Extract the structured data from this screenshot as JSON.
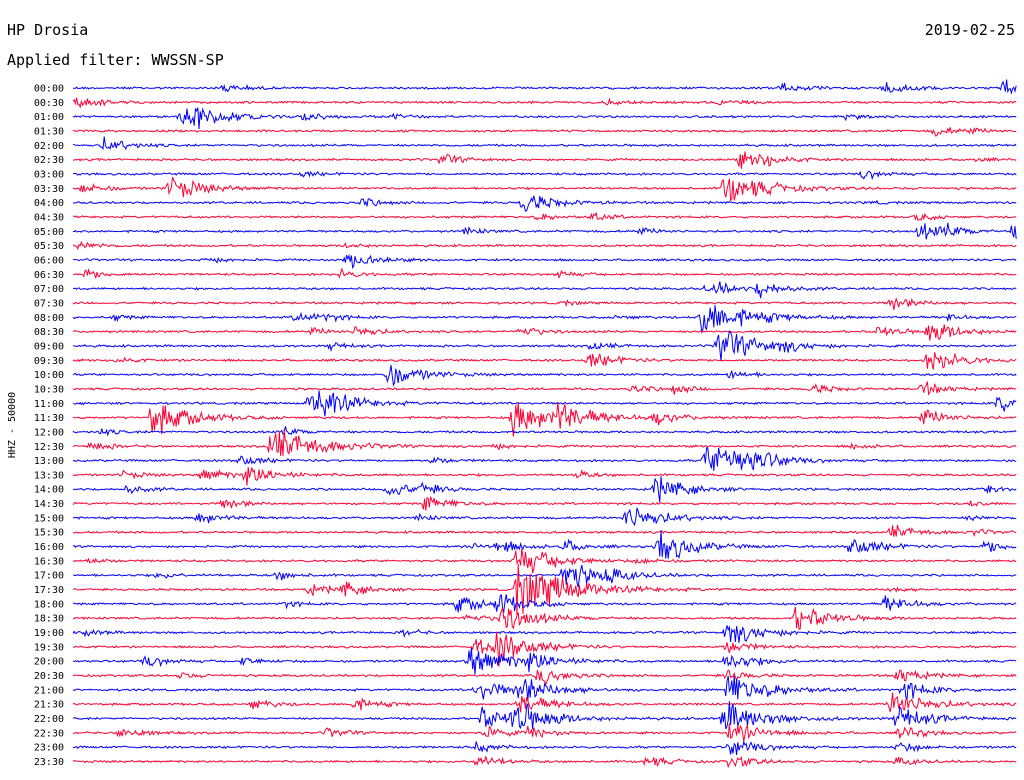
{
  "header": {
    "station": "HP Drosia",
    "date": "2019-02-25",
    "filter_label": "Applied filter: WWSSN-SP"
  },
  "chart_data": {
    "type": "helicorder",
    "title": "HP Drosia",
    "date": "2019-02-25",
    "filter": "WWSSN-SP",
    "ylabel": "HHZ - 50000",
    "row_interval_minutes": 30,
    "row_labels": [
      "00:00",
      "00:30",
      "01:00",
      "01:30",
      "02:00",
      "02:30",
      "03:00",
      "03:30",
      "04:00",
      "04:30",
      "05:00",
      "05:30",
      "06:00",
      "06:30",
      "07:00",
      "07:30",
      "08:00",
      "08:30",
      "09:00",
      "09:30",
      "10:00",
      "10:30",
      "11:00",
      "11:30",
      "12:00",
      "12:30",
      "13:00",
      "13:30",
      "14:00",
      "14:30",
      "15:00",
      "15:30",
      "16:00",
      "16:30",
      "17:00",
      "17:30",
      "18:00",
      "18:30",
      "19:00",
      "19:30",
      "20:00",
      "20:30",
      "21:00",
      "21:30",
      "22:00",
      "22:30",
      "23:00",
      "23:30"
    ],
    "trace_colors": [
      "#0000ff",
      "#ff0033"
    ],
    "grid": false,
    "events": [
      {
        "row": 0,
        "minute": 4.8,
        "amp": 0.8
      },
      {
        "row": 0,
        "minute": 22.5,
        "amp": 0.9
      },
      {
        "row": 0,
        "minute": 25.8,
        "amp": 1.3
      },
      {
        "row": 0,
        "minute": 29.6,
        "amp": 1.5
      },
      {
        "row": 1,
        "minute": 0.1,
        "amp": 1.1
      },
      {
        "row": 1,
        "minute": 17.0,
        "amp": 0.5
      },
      {
        "row": 1,
        "minute": 20.5,
        "amp": 0.6
      },
      {
        "row": 2,
        "minute": 3.4,
        "amp": 1.2
      },
      {
        "row": 2,
        "minute": 3.7,
        "amp": 2.2
      },
      {
        "row": 2,
        "minute": 7.3,
        "amp": 0.8
      },
      {
        "row": 2,
        "minute": 10.2,
        "amp": 0.4
      },
      {
        "row": 2,
        "minute": 24.6,
        "amp": 0.6
      },
      {
        "row": 3,
        "minute": 27.4,
        "amp": 0.9
      },
      {
        "row": 3,
        "minute": 28.5,
        "amp": 0.4
      },
      {
        "row": 4,
        "minute": 1.0,
        "amp": 1.3
      },
      {
        "row": 5,
        "minute": 11.7,
        "amp": 1.0
      },
      {
        "row": 5,
        "minute": 21.2,
        "amp": 1.4
      },
      {
        "row": 5,
        "minute": 21.9,
        "amp": 1.0
      },
      {
        "row": 5,
        "minute": 28.6,
        "amp": 0.4
      },
      {
        "row": 6,
        "minute": 7.3,
        "amp": 0.5
      },
      {
        "row": 6,
        "minute": 25.1,
        "amp": 0.8
      },
      {
        "row": 7,
        "minute": 0.3,
        "amp": 1.0
      },
      {
        "row": 7,
        "minute": 3.1,
        "amp": 2.2
      },
      {
        "row": 7,
        "minute": 20.7,
        "amp": 3.0
      },
      {
        "row": 8,
        "minute": 9.2,
        "amp": 0.8
      },
      {
        "row": 8,
        "minute": 14.3,
        "amp": 2.0
      },
      {
        "row": 8,
        "minute": 25.3,
        "amp": 0.3
      },
      {
        "row": 9,
        "minute": 14.8,
        "amp": 0.6
      },
      {
        "row": 9,
        "minute": 16.5,
        "amp": 0.7
      },
      {
        "row": 9,
        "minute": 26.8,
        "amp": 0.7
      },
      {
        "row": 10,
        "minute": 12.5,
        "amp": 0.6
      },
      {
        "row": 10,
        "minute": 18.0,
        "amp": 0.6
      },
      {
        "row": 10,
        "minute": 26.9,
        "amp": 1.5
      },
      {
        "row": 10,
        "minute": 27.7,
        "amp": 0.9
      },
      {
        "row": 10,
        "minute": 29.9,
        "amp": 1.5
      },
      {
        "row": 11,
        "minute": 0.2,
        "amp": 0.8
      },
      {
        "row": 11,
        "minute": 8.7,
        "amp": 0.5
      },
      {
        "row": 12,
        "minute": 4.2,
        "amp": 0.6
      },
      {
        "row": 12,
        "minute": 8.7,
        "amp": 1.5
      },
      {
        "row": 13,
        "minute": 0.4,
        "amp": 0.9
      },
      {
        "row": 13,
        "minute": 8.5,
        "amp": 0.8
      },
      {
        "row": 13,
        "minute": 15.4,
        "amp": 0.6
      },
      {
        "row": 14,
        "minute": 20.1,
        "amp": 0.4
      },
      {
        "row": 14,
        "minute": 20.4,
        "amp": 1.0
      },
      {
        "row": 14,
        "minute": 21.8,
        "amp": 1.4
      },
      {
        "row": 15,
        "minute": 15.5,
        "amp": 0.4
      },
      {
        "row": 15,
        "minute": 26.0,
        "amp": 1.3
      },
      {
        "row": 16,
        "minute": 1.3,
        "amp": 0.5
      },
      {
        "row": 16,
        "minute": 7.1,
        "amp": 1.1
      },
      {
        "row": 16,
        "minute": 8.0,
        "amp": 0.5
      },
      {
        "row": 16,
        "minute": 17.3,
        "amp": 0.5
      },
      {
        "row": 16,
        "minute": 20.0,
        "amp": 3.6
      },
      {
        "row": 16,
        "minute": 27.8,
        "amp": 0.6
      },
      {
        "row": 17,
        "minute": 7.6,
        "amp": 0.6
      },
      {
        "row": 17,
        "minute": 9.0,
        "amp": 1.0
      },
      {
        "row": 17,
        "minute": 14.2,
        "amp": 1.0
      },
      {
        "row": 17,
        "minute": 25.6,
        "amp": 1.1
      },
      {
        "row": 17,
        "minute": 27.2,
        "amp": 2.0
      },
      {
        "row": 18,
        "minute": 8.2,
        "amp": 0.6
      },
      {
        "row": 18,
        "minute": 16.5,
        "amp": 0.8
      },
      {
        "row": 18,
        "minute": 20.5,
        "amp": 3.2
      },
      {
        "row": 18,
        "minute": 22.5,
        "amp": 0.8
      },
      {
        "row": 19,
        "minute": 1.4,
        "amp": 0.6
      },
      {
        "row": 19,
        "minute": 16.4,
        "amp": 1.5
      },
      {
        "row": 19,
        "minute": 27.2,
        "amp": 2.2
      },
      {
        "row": 20,
        "minute": 10.0,
        "amp": 2.2
      },
      {
        "row": 20,
        "minute": 20.9,
        "amp": 0.8
      },
      {
        "row": 21,
        "minute": 17.8,
        "amp": 0.7
      },
      {
        "row": 21,
        "minute": 19.1,
        "amp": 0.8
      },
      {
        "row": 21,
        "minute": 23.5,
        "amp": 0.9
      },
      {
        "row": 21,
        "minute": 27.0,
        "amp": 1.2
      },
      {
        "row": 22,
        "minute": 7.5,
        "amp": 1.5
      },
      {
        "row": 22,
        "minute": 7.8,
        "amp": 2.4
      },
      {
        "row": 22,
        "minute": 29.4,
        "amp": 1.6
      },
      {
        "row": 23,
        "minute": 2.5,
        "amp": 3.0
      },
      {
        "row": 23,
        "minute": 14.0,
        "amp": 3.2
      },
      {
        "row": 23,
        "minute": 15.3,
        "amp": 2.4
      },
      {
        "row": 23,
        "minute": 18.5,
        "amp": 1.2
      },
      {
        "row": 23,
        "minute": 27.0,
        "amp": 1.5
      },
      {
        "row": 24,
        "minute": 0.9,
        "amp": 0.5
      },
      {
        "row": 24,
        "minute": 6.7,
        "amp": 0.8
      },
      {
        "row": 25,
        "minute": 0.6,
        "amp": 0.8
      },
      {
        "row": 25,
        "minute": 6.3,
        "amp": 3.5
      },
      {
        "row": 25,
        "minute": 13.3,
        "amp": 0.6
      },
      {
        "row": 25,
        "minute": 24.8,
        "amp": 0.5
      },
      {
        "row": 26,
        "minute": 5.3,
        "amp": 1.0
      },
      {
        "row": 26,
        "minute": 11.4,
        "amp": 0.6
      },
      {
        "row": 26,
        "minute": 20.1,
        "amp": 2.6
      },
      {
        "row": 26,
        "minute": 20.6,
        "amp": 1.4
      },
      {
        "row": 26,
        "minute": 21.0,
        "amp": 1.0
      },
      {
        "row": 26,
        "minute": 21.7,
        "amp": 1.3
      },
      {
        "row": 27,
        "minute": 1.6,
        "amp": 0.7
      },
      {
        "row": 27,
        "minute": 4.1,
        "amp": 1.3
      },
      {
        "row": 27,
        "minute": 5.5,
        "amp": 1.8
      },
      {
        "row": 27,
        "minute": 16.0,
        "amp": 0.7
      },
      {
        "row": 28,
        "minute": 1.7,
        "amp": 0.8
      },
      {
        "row": 28,
        "minute": 10.0,
        "amp": 1.5
      },
      {
        "row": 28,
        "minute": 11.1,
        "amp": 0.8
      },
      {
        "row": 28,
        "minute": 18.5,
        "amp": 2.2
      },
      {
        "row": 28,
        "minute": 29.0,
        "amp": 0.8
      },
      {
        "row": 29,
        "minute": 4.8,
        "amp": 1.0
      },
      {
        "row": 29,
        "minute": 11.2,
        "amp": 1.4
      },
      {
        "row": 29,
        "minute": 28.5,
        "amp": 0.5
      },
      {
        "row": 30,
        "minute": 4.0,
        "amp": 1.2
      },
      {
        "row": 30,
        "minute": 11.0,
        "amp": 0.5
      },
      {
        "row": 30,
        "minute": 17.6,
        "amp": 2.5
      },
      {
        "row": 30,
        "minute": 28.5,
        "amp": 0.5
      },
      {
        "row": 31,
        "minute": 26.0,
        "amp": 1.3
      },
      {
        "row": 31,
        "minute": 28.6,
        "amp": 0.5
      },
      {
        "row": 32,
        "minute": 12.7,
        "amp": 0.5
      },
      {
        "row": 32,
        "minute": 13.5,
        "amp": 1.2
      },
      {
        "row": 32,
        "minute": 15.6,
        "amp": 1.0
      },
      {
        "row": 32,
        "minute": 18.8,
        "amp": 0.8
      },
      {
        "row": 32,
        "minute": 18.6,
        "amp": 2.5
      },
      {
        "row": 32,
        "minute": 24.7,
        "amp": 1.8
      },
      {
        "row": 32,
        "minute": 29.0,
        "amp": 1.2
      },
      {
        "row": 33,
        "minute": 0.5,
        "amp": 0.5
      },
      {
        "row": 33,
        "minute": 14.1,
        "amp": 2.8
      },
      {
        "row": 33,
        "minute": 18.0,
        "amp": 0.5
      },
      {
        "row": 34,
        "minute": 2.7,
        "amp": 0.6
      },
      {
        "row": 34,
        "minute": 6.5,
        "amp": 0.8
      },
      {
        "row": 34,
        "minute": 15.6,
        "amp": 2.6
      },
      {
        "row": 34,
        "minute": 17.0,
        "amp": 0.9
      },
      {
        "row": 35,
        "minute": 7.5,
        "amp": 1.0
      },
      {
        "row": 35,
        "minute": 8.6,
        "amp": 1.2
      },
      {
        "row": 35,
        "minute": 14.1,
        "amp": 4.5
      },
      {
        "row": 35,
        "minute": 15.1,
        "amp": 0.6
      },
      {
        "row": 35,
        "minute": 26.0,
        "amp": 0.5
      },
      {
        "row": 36,
        "minute": 6.7,
        "amp": 0.5
      },
      {
        "row": 36,
        "minute": 12.2,
        "amp": 1.5
      },
      {
        "row": 36,
        "minute": 13.5,
        "amp": 1.8
      },
      {
        "row": 36,
        "minute": 25.8,
        "amp": 1.5
      },
      {
        "row": 37,
        "minute": 12.5,
        "amp": 0.8
      },
      {
        "row": 37,
        "minute": 13.6,
        "amp": 2.5
      },
      {
        "row": 37,
        "minute": 23.0,
        "amp": 2.5
      },
      {
        "row": 38,
        "minute": 0.4,
        "amp": 0.6
      },
      {
        "row": 38,
        "minute": 10.5,
        "amp": 0.6
      },
      {
        "row": 38,
        "minute": 20.8,
        "amp": 2.4
      },
      {
        "row": 39,
        "minute": 12.8,
        "amp": 1.5
      },
      {
        "row": 39,
        "minute": 13.5,
        "amp": 2.5
      },
      {
        "row": 39,
        "minute": 20.8,
        "amp": 1.2
      },
      {
        "row": 40,
        "minute": 2.3,
        "amp": 1.0
      },
      {
        "row": 40,
        "minute": 5.4,
        "amp": 0.7
      },
      {
        "row": 40,
        "minute": 12.6,
        "amp": 3.0
      },
      {
        "row": 40,
        "minute": 14.5,
        "amp": 1.5
      },
      {
        "row": 40,
        "minute": 20.7,
        "amp": 1.8
      },
      {
        "row": 41,
        "minute": 3.4,
        "amp": 0.6
      },
      {
        "row": 41,
        "minute": 14.8,
        "amp": 1.6
      },
      {
        "row": 41,
        "minute": 20.8,
        "amp": 1.0
      },
      {
        "row": 41,
        "minute": 26.2,
        "amp": 1.4
      },
      {
        "row": 42,
        "minute": 12.8,
        "amp": 2.0
      },
      {
        "row": 42,
        "minute": 14.2,
        "amp": 2.4
      },
      {
        "row": 42,
        "minute": 20.8,
        "amp": 3.0
      },
      {
        "row": 42,
        "minute": 26.4,
        "amp": 1.6
      },
      {
        "row": 43,
        "minute": 5.7,
        "amp": 1.0
      },
      {
        "row": 43,
        "minute": 8.9,
        "amp": 1.2
      },
      {
        "row": 43,
        "minute": 14.2,
        "amp": 2.0
      },
      {
        "row": 43,
        "minute": 26.0,
        "amp": 2.5
      },
      {
        "row": 44,
        "minute": 13.0,
        "amp": 2.0
      },
      {
        "row": 44,
        "minute": 14.0,
        "amp": 2.8
      },
      {
        "row": 44,
        "minute": 20.7,
        "amp": 3.0
      },
      {
        "row": 44,
        "minute": 26.2,
        "amp": 2.2
      },
      {
        "row": 45,
        "minute": 1.5,
        "amp": 1.0
      },
      {
        "row": 45,
        "minute": 8.1,
        "amp": 0.8
      },
      {
        "row": 45,
        "minute": 13.0,
        "amp": 1.2
      },
      {
        "row": 45,
        "minute": 14.5,
        "amp": 1.0
      },
      {
        "row": 45,
        "minute": 20.9,
        "amp": 2.0
      },
      {
        "row": 45,
        "minute": 26.3,
        "amp": 1.2
      },
      {
        "row": 46,
        "minute": 12.8,
        "amp": 0.9
      },
      {
        "row": 46,
        "minute": 20.9,
        "amp": 1.6
      },
      {
        "row": 46,
        "minute": 26.2,
        "amp": 1.0
      },
      {
        "row": 47,
        "minute": 12.8,
        "amp": 1.2
      },
      {
        "row": 47,
        "minute": 18.2,
        "amp": 1.0
      },
      {
        "row": 47,
        "minute": 20.9,
        "amp": 1.2
      },
      {
        "row": 47,
        "minute": 26.2,
        "amp": 0.8
      }
    ]
  }
}
